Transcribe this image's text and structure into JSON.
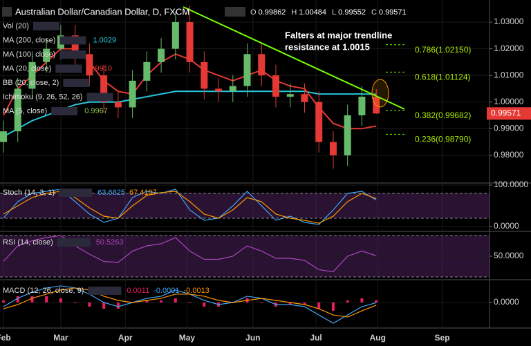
{
  "header": {
    "title": "Australian Dollar/Canadian Dollar, D, FXCM",
    "ohlc": [
      {
        "key": "O",
        "value": "0.99862"
      },
      {
        "key": "H",
        "value": "1.00484"
      },
      {
        "key": "L",
        "value": "0.99552"
      },
      {
        "key": "C",
        "value": "0.99571"
      }
    ]
  },
  "annotation": [
    "Falters at major trendline",
    "resistance at 1.0015"
  ],
  "chart_data": [
    {
      "type": "candlestick",
      "xlim": [
        -0.24,
        33.9
      ],
      "xticks": [
        {
          "value": 0,
          "label": "Feb"
        },
        {
          "value": 4,
          "label": "Mar"
        },
        {
          "value": 8.5,
          "label": "Apr"
        },
        {
          "value": 12.8,
          "label": "May"
        },
        {
          "value": 17.4,
          "label": "Jun"
        },
        {
          "value": 21.8,
          "label": "Jul"
        },
        {
          "value": 26.1,
          "label": "Aug"
        },
        {
          "value": 30.6,
          "label": "Sep"
        }
      ],
      "ylim": [
        0.9696,
        1.0383
      ],
      "yticks": [
        {
          "value": 1.03,
          "label": "1.03000"
        },
        {
          "value": 1.02,
          "label": "1.02000"
        },
        {
          "value": 1.01,
          "label": "1.01000"
        },
        {
          "value": 1.0,
          "label": "1.00000"
        },
        {
          "value": 0.99,
          "label": "0.99000"
        },
        {
          "value": 0.98,
          "label": "0.98000"
        }
      ],
      "last_price": 0.99571,
      "up_color": "#66bb6a",
      "down_color": "#e53935",
      "open": [
        0.985,
        0.989,
        1.005,
        1.015,
        1.02,
        1.025,
        1.018,
        1.01,
        1.0,
        0.998,
        1.008,
        1.015,
        1.02,
        1.03,
        1.015,
        1.005,
        1.004,
        1.006,
        1.018,
        1.01,
        1.002,
        1.003,
        1.0,
        0.985,
        0.98,
        0.995,
        1.002
      ],
      "high": [
        0.993,
        1.009,
        1.019,
        1.024,
        1.029,
        1.029,
        1.022,
        1.014,
        1.004,
        1.012,
        1.019,
        1.024,
        1.034,
        1.036,
        1.019,
        1.009,
        1.01,
        1.022,
        1.022,
        1.014,
        1.007,
        1.007,
        1.004,
        0.989,
        0.999,
        1.006,
        1.00484
      ],
      "low": [
        0.981,
        0.985,
        1.001,
        1.011,
        1.016,
        1.014,
        1.006,
        0.996,
        0.994,
        0.994,
        1.004,
        1.011,
        1.016,
        1.011,
        1.001,
        1.0,
        1.0,
        1.002,
        1.006,
        0.998,
        0.998,
        0.996,
        0.981,
        0.975,
        0.976,
        0.991,
        0.99552
      ],
      "close": [
        0.989,
        1.005,
        1.015,
        1.02,
        1.025,
        1.018,
        1.01,
        1.0,
        0.998,
        1.008,
        1.015,
        1.02,
        1.03,
        1.015,
        1.005,
        1.004,
        1.006,
        1.018,
        1.01,
        1.002,
        1.003,
        1.0,
        0.985,
        0.98,
        0.995,
        1.002,
        0.99571
      ],
      "series": [
        {
          "color": "#26c6da",
          "values": [
            0.987,
            0.99,
            0.993,
            0.995,
            0.997,
            0.999,
            1.0,
            1.0,
            1.0,
            1.001,
            1.002,
            1.003,
            1.004,
            1.004,
            1.004,
            1.004,
            1.004,
            1.004,
            1.004,
            1.004,
            1.004,
            1.004,
            1.003,
            1.003,
            1.003,
            1.003,
            1.0029
          ]
        },
        {
          "color": "#e53935",
          "values": [
            0.995,
            1.005,
            1.01,
            1.015,
            1.02,
            1.02,
            1.015,
            1.008,
            1.004,
            1.003,
            1.01,
            1.015,
            1.018,
            1.016,
            1.012,
            1.01,
            1.008,
            1.01,
            1.012,
            1.008,
            1.006,
            1.005,
            0.998,
            0.992,
            0.99,
            0.99,
            0.991
          ]
        }
      ],
      "fib_levels": [
        {
          "value": 1.0215,
          "label": "0.786(1.02150)"
        },
        {
          "value": 1.01124,
          "label": "0.618(1.01124)"
        },
        {
          "value": 0.99682,
          "label": "0.382(0.99682)"
        },
        {
          "value": 0.9879,
          "label": "0.236(0.98790)"
        }
      ],
      "indicators": [
        {
          "label": "Vol (20)"
        },
        {
          "label": "MA (200, close)",
          "reading": "1.0029",
          "color": "#26c6da"
        },
        {
          "label": "MA (100, close)"
        },
        {
          "label": "MA (20, close)",
          "reading": "0.9910",
          "color": "#e53935"
        },
        {
          "label": "BB (20, close, 2)"
        },
        {
          "label": "Ichimoku (9, 26, 52, 26)"
        },
        {
          "label": "MA (5, close)",
          "reading": "0.9967",
          "color": "#8bc34a"
        }
      ]
    },
    {
      "type": "line",
      "title": "Stoch (14, 3, 1)",
      "ylim": [
        -11.7,
        105
      ],
      "yticks": [
        {
          "value": 100,
          "label": "100.0000"
        },
        {
          "value": 0,
          "label": "0.0000"
        }
      ],
      "band": [
        20,
        80
      ],
      "readings": [
        {
          "text": "63.6825",
          "color": "#42a5f5"
        },
        {
          "text": "67.4107",
          "color": "#ff9800"
        }
      ],
      "series": [
        {
          "color": "#42a5f5",
          "values": [
            20,
            60,
            80,
            85,
            90,
            60,
            30,
            10,
            20,
            70,
            85,
            80,
            90,
            40,
            15,
            20,
            50,
            85,
            50,
            15,
            25,
            10,
            5,
            40,
            80,
            85,
            63.7
          ]
        },
        {
          "color": "#ff9800",
          "values": [
            30,
            50,
            70,
            80,
            85,
            70,
            45,
            25,
            20,
            50,
            75,
            82,
            85,
            60,
            30,
            20,
            40,
            70,
            60,
            30,
            20,
            15,
            8,
            25,
            60,
            80,
            67.4
          ]
        }
      ]
    },
    {
      "type": "line",
      "title": "RSI (14, close)",
      "ylim": [
        27.3,
        72.7
      ],
      "yticks": [
        {
          "value": 50,
          "label": "50.0000"
        }
      ],
      "band": [
        30,
        70
      ],
      "readings": [
        {
          "text": "50.5263",
          "color": "#ab47bc"
        }
      ],
      "series": [
        {
          "color": "#ab47bc",
          "values": [
            45,
            60,
            65,
            68,
            70,
            60,
            52,
            45,
            44,
            55,
            60,
            62,
            68,
            55,
            47,
            47,
            50,
            60,
            55,
            48,
            48,
            46,
            37,
            35,
            50,
            55,
            50.5
          ]
        }
      ]
    },
    {
      "type": "macd",
      "title": "MACD (12, 26, close, 9)",
      "ylim": [
        -0.0123,
        0.0103
      ],
      "yticks": [
        {
          "value": 0,
          "label": "0.0000"
        }
      ],
      "readings": [
        {
          "text": "0.0011",
          "color": "#e91e63"
        },
        {
          "text": "-0.0001",
          "color": "#42a5f5"
        },
        {
          "text": "-0.0013",
          "color": "#ff9800"
        }
      ],
      "histogram": {
        "color": "#e91e63",
        "values": [
          0.001,
          0.003,
          0.003,
          0.003,
          0.002,
          0,
          -0.002,
          -0.003,
          -0.003,
          0,
          0.001,
          0.001,
          0.002,
          0,
          -0.002,
          -0.002,
          0,
          0.002,
          0,
          -0.002,
          -0.001,
          -0.001,
          -0.003,
          -0.004,
          0.001,
          0.002,
          0.0011
        ]
      },
      "series": [
        {
          "color": "#42a5f5",
          "values": [
            -0.002,
            0.002,
            0.005,
            0.007,
            0.008,
            0.007,
            0.004,
            0.0,
            -0.002,
            0.0,
            0.002,
            0.003,
            0.006,
            0.004,
            0.001,
            -0.001,
            0.0,
            0.003,
            0.002,
            -0.001,
            -0.001,
            -0.002,
            -0.006,
            -0.01,
            -0.006,
            -0.002,
            -0.0001
          ]
        },
        {
          "color": "#ff9800",
          "values": [
            -0.003,
            -0.001,
            0.002,
            0.004,
            0.006,
            0.007,
            0.006,
            0.003,
            0.001,
            0.0,
            0.001,
            0.002,
            0.004,
            0.004,
            0.003,
            0.001,
            0.0,
            0.001,
            0.002,
            0.001,
            0.0,
            -0.001,
            -0.003,
            -0.006,
            -0.007,
            -0.004,
            -0.0013
          ]
        }
      ]
    }
  ]
}
